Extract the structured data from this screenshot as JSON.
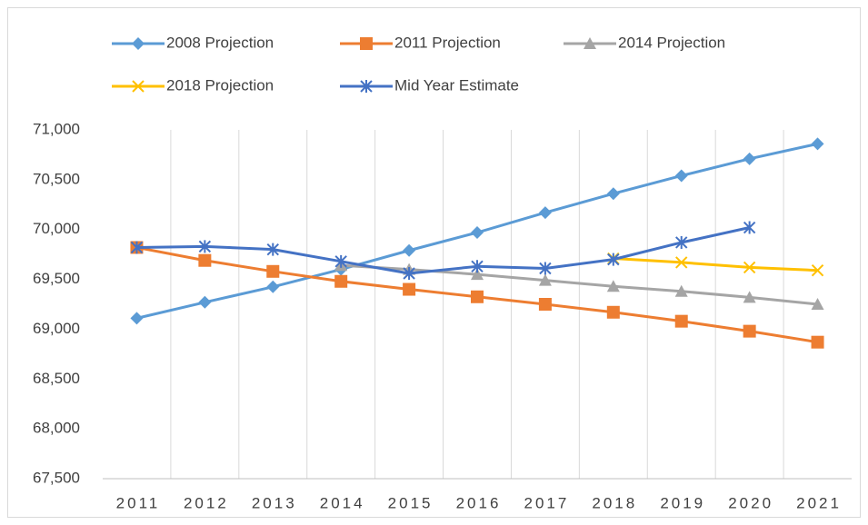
{
  "chart_data": {
    "type": "line",
    "categories": [
      "2011",
      "2012",
      "2013",
      "2014",
      "2015",
      "2016",
      "2017",
      "2018",
      "2019",
      "2020",
      "2021"
    ],
    "series": [
      {
        "name": "2008 Projection",
        "color": "#5b9bd5",
        "marker": "diamond",
        "values": [
          69110,
          69270,
          69425,
          69600,
          69790,
          69970,
          70170,
          70360,
          70540,
          70710,
          70860
        ]
      },
      {
        "name": "2011 Projection",
        "color": "#ed7d31",
        "marker": "square",
        "values": [
          69820,
          69690,
          69580,
          69480,
          69400,
          69325,
          69250,
          69170,
          69080,
          68980,
          68870
        ]
      },
      {
        "name": "2014 Projection",
        "color": "#a5a5a5",
        "marker": "triangle",
        "values": [
          null,
          null,
          null,
          69640,
          69600,
          69550,
          69490,
          69430,
          69380,
          69320,
          69250
        ]
      },
      {
        "name": "2018 Projection",
        "color": "#ffc000",
        "marker": "x",
        "values": [
          null,
          null,
          null,
          null,
          null,
          null,
          null,
          69710,
          69670,
          69620,
          69590
        ]
      },
      {
        "name": "Mid Year Estimate",
        "color": "#4472c4",
        "marker": "asterisk",
        "values": [
          69820,
          69830,
          69800,
          69680,
          69560,
          69630,
          69610,
          69700,
          69870,
          70020,
          null
        ]
      }
    ],
    "ylim": [
      67500,
      71000
    ],
    "yticks": [
      {
        "value": 67500,
        "label": "67,500"
      },
      {
        "value": 68000,
        "label": "68,000"
      },
      {
        "value": 68500,
        "label": "68,500"
      },
      {
        "value": 69000,
        "label": "69,000"
      },
      {
        "value": 69500,
        "label": "69,500"
      },
      {
        "value": 70000,
        "label": "70,000"
      },
      {
        "value": 70500,
        "label": "70,500"
      },
      {
        "value": 71000,
        "label": "71,000"
      }
    ],
    "grid": "vertical",
    "legend": "top"
  }
}
